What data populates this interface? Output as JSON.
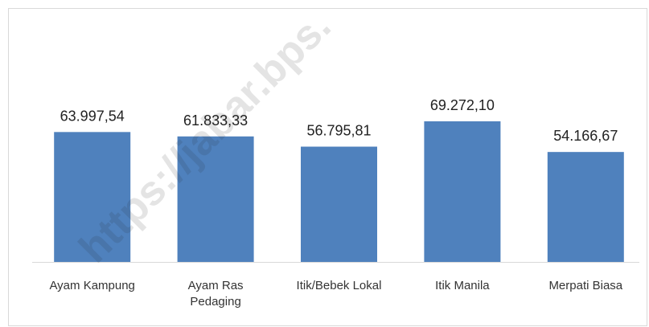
{
  "chart_data": {
    "type": "bar",
    "categories": [
      "Ayam Kampung",
      "Ayam Ras Pedaging",
      "Itik/Bebek Lokal",
      "Itik Manila",
      "Merpati Biasa"
    ],
    "values": [
      63997.54,
      61833.33,
      56795.81,
      69272.1,
      54166.67
    ],
    "value_labels": [
      "63.997,54",
      "61.833,33",
      "56.795,81",
      "69.272,10",
      "54.166,67"
    ],
    "color": "#4f81bd",
    "annotations": [
      "https://jabar.bps."
    ]
  }
}
